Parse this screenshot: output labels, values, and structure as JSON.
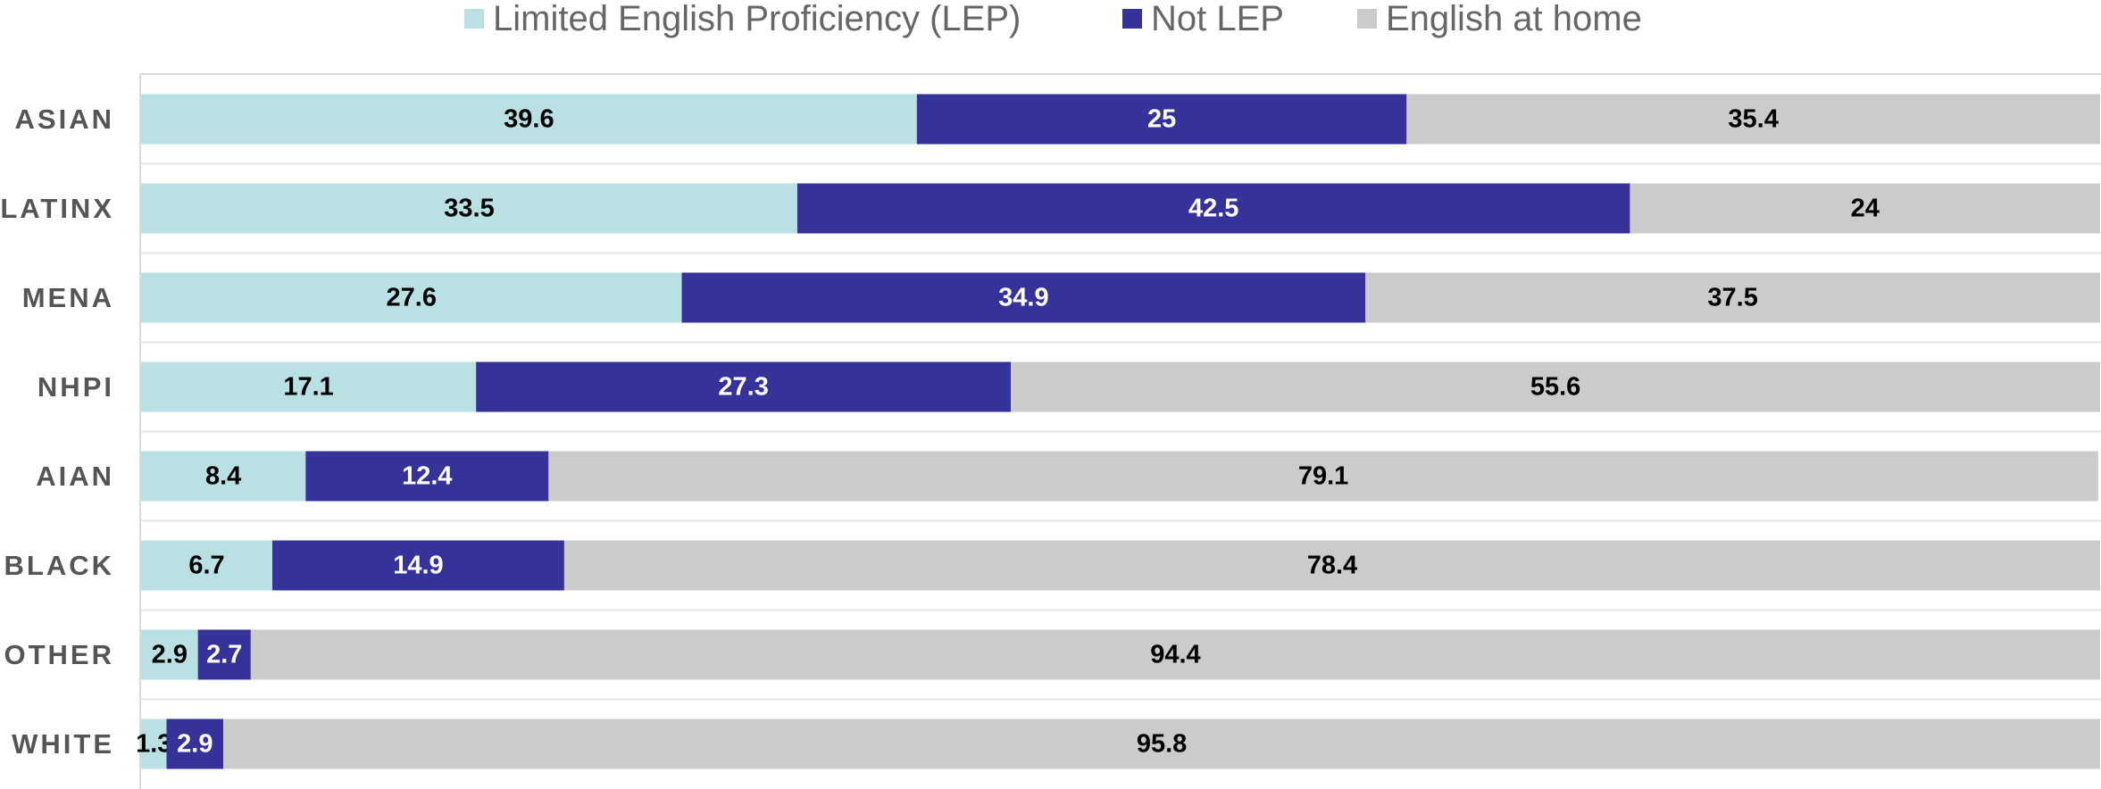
{
  "chart_data": {
    "type": "stacked_bar_horizontal",
    "categories": [
      "ASIAN",
      "LATINX",
      "MENA",
      "NHPI",
      "AIAN",
      "BLACK",
      "OTHER",
      "WHITE"
    ],
    "series": [
      {
        "name": "Limited English Proficiency (LEP)",
        "color": "#b9e0e3",
        "values": [
          39.6,
          33.5,
          27.6,
          17.1,
          8.4,
          6.7,
          2.9,
          1.3
        ]
      },
      {
        "name": "Not LEP",
        "color": "#35329a",
        "values": [
          25,
          42.5,
          34.9,
          27.3,
          12.4,
          14.9,
          2.7,
          2.9
        ]
      },
      {
        "name": "English at home",
        "color": "#cbcbcb",
        "values": [
          35.4,
          24,
          37.5,
          55.6,
          79.1,
          78.4,
          94.4,
          95.8
        ]
      }
    ],
    "xlim": [
      0,
      100
    ],
    "legend": "top"
  }
}
